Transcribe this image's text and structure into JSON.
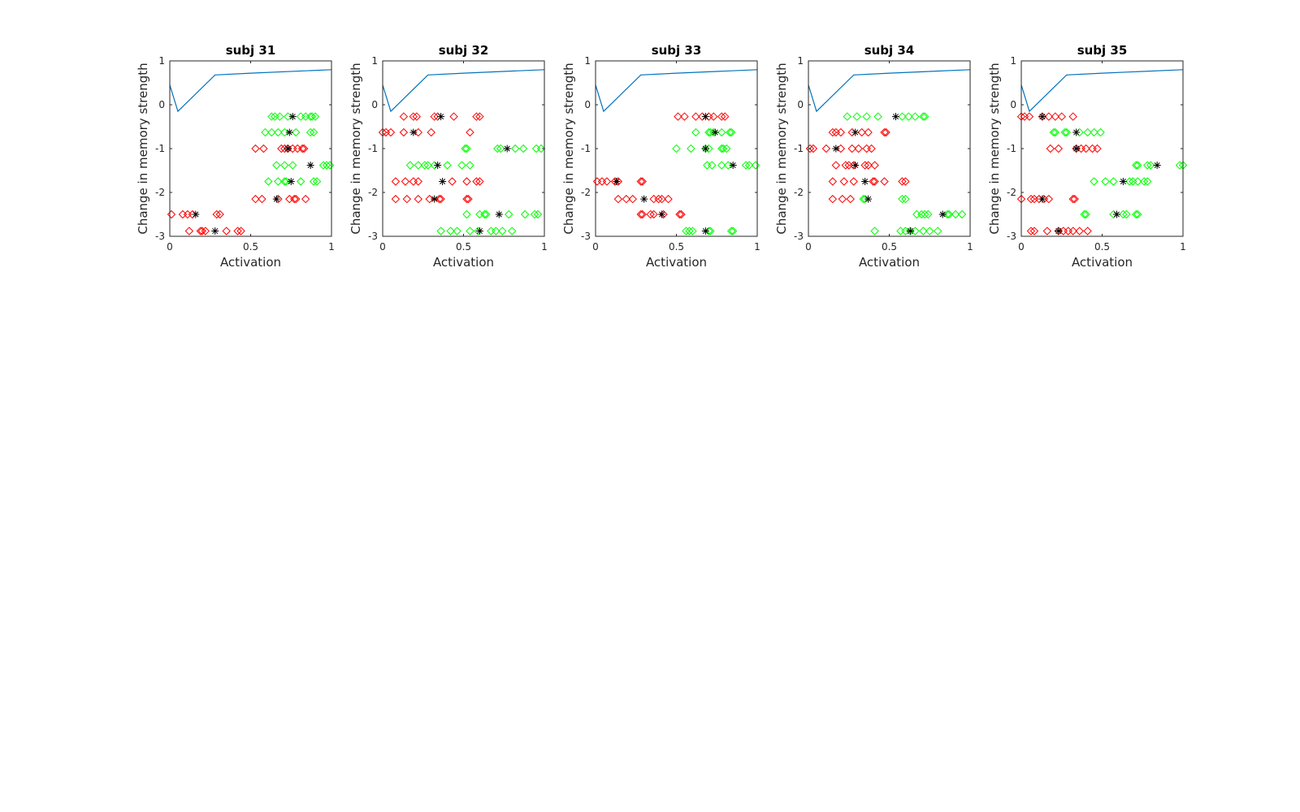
{
  "figure": {
    "colors": {
      "curve": "#0072BD",
      "red": "#FF0000",
      "green": "#00FF00",
      "mean": "#000000",
      "axes": "#262626"
    }
  },
  "chart_data": [
    {
      "type": "scatter",
      "title": "subj 31",
      "xlabel": "Activation",
      "ylabel": "Change in memory strength",
      "xlim": [
        0,
        1
      ],
      "ylim": [
        -3,
        1
      ],
      "xticks": [
        "0",
        "0.5",
        "1"
      ],
      "yticks": [
        "1",
        "0",
        "-1",
        "-2",
        "-3"
      ],
      "curve": {
        "x": [
          0,
          0.05,
          0.28,
          0.5,
          1
        ],
        "y": [
          0.45,
          -0.15,
          0.68,
          0.72,
          0.8
        ]
      },
      "series": [
        {
          "color": "red",
          "points": [
            {
              "y": -2.5,
              "x": [
                0.01,
                0.08,
                0.11,
                0.14,
                0.29,
                0.31
              ]
            },
            {
              "y": -2.88,
              "x": [
                0.12,
                0.19,
                0.2,
                0.22,
                0.35,
                0.42,
                0.44
              ]
            },
            {
              "y": -1.0,
              "x": [
                0.53,
                0.58,
                0.69,
                0.71,
                0.73,
                0.76,
                0.79,
                0.82,
                0.83
              ]
            },
            {
              "y": -2.15,
              "x": [
                0.53,
                0.57,
                0.67,
                0.74,
                0.77,
                0.78,
                0.84
              ]
            },
            {
              "y": -1.0,
              "x": []
            }
          ]
        },
        {
          "color": "green",
          "points": [
            {
              "y": -0.27,
              "x": [
                0.63,
                0.65,
                0.68,
                0.73,
                0.81,
                0.84,
                0.87,
                0.88,
                0.9
              ]
            },
            {
              "y": -0.63,
              "x": [
                0.59,
                0.63,
                0.67,
                0.71,
                0.78,
                0.87,
                0.89
              ]
            },
            {
              "y": -1.38,
              "x": [
                0.66,
                0.71,
                0.76,
                0.95,
                0.97,
                0.99
              ]
            },
            {
              "y": -1.75,
              "x": [
                0.61,
                0.67,
                0.71,
                0.72,
                0.81,
                0.89,
                0.91
              ]
            }
          ]
        },
        {
          "color": "mean",
          "points": [
            {
              "y": -0.27,
              "x": [
                0.76
              ]
            },
            {
              "y": -0.63,
              "x": [
                0.74
              ]
            },
            {
              "y": -1.0,
              "x": [
                0.73
              ]
            },
            {
              "y": -1.38,
              "x": [
                0.87
              ]
            },
            {
              "y": -1.75,
              "x": [
                0.75
              ]
            },
            {
              "y": -2.15,
              "x": [
                0.66
              ]
            },
            {
              "y": -2.5,
              "x": [
                0.16
              ]
            },
            {
              "y": -2.88,
              "x": [
                0.28
              ]
            }
          ]
        }
      ]
    },
    {
      "type": "scatter",
      "title": "subj 32",
      "xlabel": "Activation",
      "ylabel": "Change in memory strength",
      "xlim": [
        0,
        1
      ],
      "ylim": [
        -3,
        1
      ],
      "xticks": [
        "0",
        "0.5",
        "1"
      ],
      "yticks": [
        "1",
        "0",
        "-1",
        "-2",
        "-3"
      ],
      "curve": {
        "x": [
          0,
          0.05,
          0.28,
          0.5,
          1
        ],
        "y": [
          0.45,
          -0.15,
          0.68,
          0.72,
          0.8
        ]
      },
      "series": [
        {
          "color": "red",
          "points": [
            {
              "y": -0.27,
              "x": [
                0.13,
                0.19,
                0.21,
                0.32,
                0.34,
                0.44,
                0.58,
                0.6
              ]
            },
            {
              "y": -0.63,
              "x": [
                0.0,
                0.02,
                0.05,
                0.13,
                0.22,
                0.3,
                0.54
              ]
            },
            {
              "y": -1.75,
              "x": [
                0.08,
                0.14,
                0.19,
                0.22,
                0.43,
                0.52,
                0.58,
                0.6
              ]
            },
            {
              "y": -2.15,
              "x": [
                0.08,
                0.15,
                0.22,
                0.29,
                0.35,
                0.36,
                0.52,
                0.53
              ]
            }
          ]
        },
        {
          "color": "green",
          "points": [
            {
              "y": -1.0,
              "x": [
                0.51,
                0.52,
                0.71,
                0.73,
                0.82,
                0.87,
                0.95,
                0.98
              ]
            },
            {
              "y": -1.38,
              "x": [
                0.17,
                0.22,
                0.26,
                0.28,
                0.32,
                0.4,
                0.49,
                0.54
              ]
            },
            {
              "y": -2.5,
              "x": [
                0.52,
                0.6,
                0.63,
                0.64,
                0.78,
                0.88,
                0.94,
                0.96
              ]
            },
            {
              "y": -2.88,
              "x": [
                0.36,
                0.42,
                0.46,
                0.54,
                0.59,
                0.67,
                0.7,
                0.74,
                0.8
              ]
            }
          ]
        },
        {
          "color": "mean",
          "points": [
            {
              "y": -0.27,
              "x": [
                0.36
              ]
            },
            {
              "y": -0.63,
              "x": [
                0.19
              ]
            },
            {
              "y": -1.0,
              "x": [
                0.77
              ]
            },
            {
              "y": -1.38,
              "x": [
                0.34
              ]
            },
            {
              "y": -1.75,
              "x": [
                0.37
              ]
            },
            {
              "y": -2.15,
              "x": [
                0.32
              ]
            },
            {
              "y": -2.5,
              "x": [
                0.72
              ]
            },
            {
              "y": -2.88,
              "x": [
                0.6
              ]
            }
          ]
        }
      ]
    },
    {
      "type": "scatter",
      "title": "subj 33",
      "xlabel": "Activation",
      "ylabel": "Change in memory strength",
      "xlim": [
        0,
        1
      ],
      "ylim": [
        -3,
        1
      ],
      "xticks": [
        "0",
        "0.5",
        "1"
      ],
      "yticks": [
        "1",
        "0",
        "-1",
        "-2",
        "-3"
      ],
      "curve": {
        "x": [
          0,
          0.05,
          0.28,
          0.5,
          1
        ],
        "y": [
          0.45,
          -0.15,
          0.68,
          0.72,
          0.8
        ]
      },
      "series": [
        {
          "color": "red",
          "points": [
            {
              "y": -0.27,
              "x": [
                0.51,
                0.55,
                0.62,
                0.66,
                0.7,
                0.73,
                0.78,
                0.8
              ]
            },
            {
              "y": -1.75,
              "x": [
                0.01,
                0.04,
                0.07,
                0.12,
                0.14,
                0.28,
                0.29
              ]
            },
            {
              "y": -2.15,
              "x": [
                0.14,
                0.19,
                0.23,
                0.36,
                0.39,
                0.41,
                0.45
              ]
            },
            {
              "y": -2.5,
              "x": [
                0.28,
                0.29,
                0.34,
                0.36,
                0.42,
                0.52,
                0.53
              ]
            }
          ]
        },
        {
          "color": "green",
          "points": [
            {
              "y": -0.63,
              "x": [
                0.62,
                0.7,
                0.71,
                0.73,
                0.78,
                0.83,
                0.84
              ]
            },
            {
              "y": -1.0,
              "x": [
                0.5,
                0.59,
                0.68,
                0.7,
                0.78,
                0.79,
                0.81
              ]
            },
            {
              "y": -1.38,
              "x": [
                0.69,
                0.72,
                0.78,
                0.82,
                0.93,
                0.95,
                0.99
              ]
            },
            {
              "y": -2.88,
              "x": [
                0.56,
                0.58,
                0.6,
                0.7,
                0.71,
                0.84,
                0.85
              ]
            }
          ]
        },
        {
          "color": "mean",
          "points": [
            {
              "y": -0.27,
              "x": [
                0.68
              ]
            },
            {
              "y": -0.63,
              "x": [
                0.74
              ]
            },
            {
              "y": -1.0,
              "x": [
                0.68
              ]
            },
            {
              "y": -1.38,
              "x": [
                0.85
              ]
            },
            {
              "y": -1.75,
              "x": [
                0.13
              ]
            },
            {
              "y": -2.15,
              "x": [
                0.3
              ]
            },
            {
              "y": -2.5,
              "x": [
                0.41
              ]
            },
            {
              "y": -2.88,
              "x": [
                0.68
              ]
            }
          ]
        }
      ]
    },
    {
      "type": "scatter",
      "title": "subj 34",
      "xlabel": "Activation",
      "ylabel": "Change in memory strength",
      "xlim": [
        0,
        1
      ],
      "ylim": [
        -3,
        1
      ],
      "xticks": [
        "0",
        "0.5",
        "1"
      ],
      "yticks": [
        "1",
        "0",
        "-1",
        "-2",
        "-3"
      ],
      "curve": {
        "x": [
          0,
          0.05,
          0.28,
          0.5,
          1
        ],
        "y": [
          0.45,
          -0.15,
          0.68,
          0.72,
          0.8
        ]
      },
      "series": [
        {
          "color": "red",
          "points": [
            {
              "y": -0.63,
              "x": [
                0.15,
                0.17,
                0.2,
                0.27,
                0.33,
                0.37,
                0.47,
                0.48
              ]
            },
            {
              "y": -1.0,
              "x": [
                0.01,
                0.03,
                0.11,
                0.2,
                0.27,
                0.31,
                0.36,
                0.39
              ]
            },
            {
              "y": -1.38,
              "x": [
                0.17,
                0.23,
                0.25,
                0.28,
                0.35,
                0.37,
                0.41
              ]
            },
            {
              "y": -1.75,
              "x": [
                0.15,
                0.22,
                0.28,
                0.4,
                0.41,
                0.47,
                0.58,
                0.6
              ]
            },
            {
              "y": -2.15,
              "x": [
                0.15,
                0.21,
                0.26
              ]
            }
          ]
        },
        {
          "color": "green",
          "points": [
            {
              "y": -0.27,
              "x": [
                0.24,
                0.3,
                0.36,
                0.43,
                0.58,
                0.62,
                0.66,
                0.71,
                0.72
              ]
            },
            {
              "y": -2.15,
              "x": [
                0.34,
                0.35,
                0.58,
                0.6
              ]
            },
            {
              "y": -2.5,
              "x": [
                0.67,
                0.7,
                0.72,
                0.74,
                0.86,
                0.87,
                0.91,
                0.95
              ]
            },
            {
              "y": -2.88,
              "x": [
                0.41,
                0.57,
                0.6,
                0.63,
                0.66,
                0.71,
                0.75,
                0.8
              ]
            }
          ]
        },
        {
          "color": "mean",
          "points": [
            {
              "y": -0.27,
              "x": [
                0.54
              ]
            },
            {
              "y": -0.63,
              "x": [
                0.29
              ]
            },
            {
              "y": -1.0,
              "x": [
                0.17
              ]
            },
            {
              "y": -1.38,
              "x": [
                0.29
              ]
            },
            {
              "y": -1.75,
              "x": [
                0.35
              ]
            },
            {
              "y": -2.15,
              "x": [
                0.37
              ]
            },
            {
              "y": -2.5,
              "x": [
                0.83
              ]
            },
            {
              "y": -2.88,
              "x": [
                0.63
              ]
            }
          ]
        }
      ]
    },
    {
      "type": "scatter",
      "title": "subj 35",
      "xlabel": "Activation",
      "ylabel": "Change in memory strength",
      "xlim": [
        0,
        1
      ],
      "ylim": [
        -3,
        1
      ],
      "xticks": [
        "0",
        "0.5",
        "1"
      ],
      "yticks": [
        "1",
        "0",
        "-1",
        "-2",
        "-3"
      ],
      "curve": {
        "x": [
          0,
          0.05,
          0.28,
          0.5,
          1
        ],
        "y": [
          0.45,
          -0.15,
          0.68,
          0.72,
          0.8
        ]
      },
      "series": [
        {
          "color": "red",
          "points": [
            {
              "y": -0.27,
              "x": [
                0.0,
                0.02,
                0.05,
                0.13,
                0.17,
                0.21,
                0.25,
                0.32
              ]
            },
            {
              "y": -1.0,
              "x": [
                0.18,
                0.23,
                0.34,
                0.37,
                0.4,
                0.44,
                0.47
              ]
            },
            {
              "y": -2.15,
              "x": [
                0.0,
                0.06,
                0.08,
                0.11,
                0.14,
                0.17,
                0.32,
                0.33
              ]
            },
            {
              "y": -2.88,
              "x": [
                0.06,
                0.08,
                0.16,
                0.23,
                0.26,
                0.29,
                0.32,
                0.36,
                0.41
              ]
            }
          ]
        },
        {
          "color": "green",
          "points": [
            {
              "y": -0.63,
              "x": [
                0.2,
                0.21,
                0.27,
                0.28,
                0.36,
                0.41,
                0.45,
                0.49
              ]
            },
            {
              "y": -1.38,
              "x": [
                0.71,
                0.72,
                0.78,
                0.8,
                0.98,
                1.0
              ]
            },
            {
              "y": -1.75,
              "x": [
                0.45,
                0.52,
                0.57,
                0.67,
                0.69,
                0.72,
                0.76,
                0.78
              ]
            },
            {
              "y": -2.5,
              "x": [
                0.39,
                0.4,
                0.57,
                0.63,
                0.65,
                0.71,
                0.72
              ]
            }
          ]
        },
        {
          "color": "mean",
          "points": [
            {
              "y": -0.27,
              "x": [
                0.13
              ]
            },
            {
              "y": -0.63,
              "x": [
                0.34
              ]
            },
            {
              "y": -1.0,
              "x": [
                0.34
              ]
            },
            {
              "y": -1.38,
              "x": [
                0.84
              ]
            },
            {
              "y": -1.75,
              "x": [
                0.63
              ]
            },
            {
              "y": -2.15,
              "x": [
                0.13
              ]
            },
            {
              "y": -2.5,
              "x": [
                0.59
              ]
            },
            {
              "y": -2.88,
              "x": [
                0.23
              ]
            }
          ]
        }
      ]
    }
  ]
}
